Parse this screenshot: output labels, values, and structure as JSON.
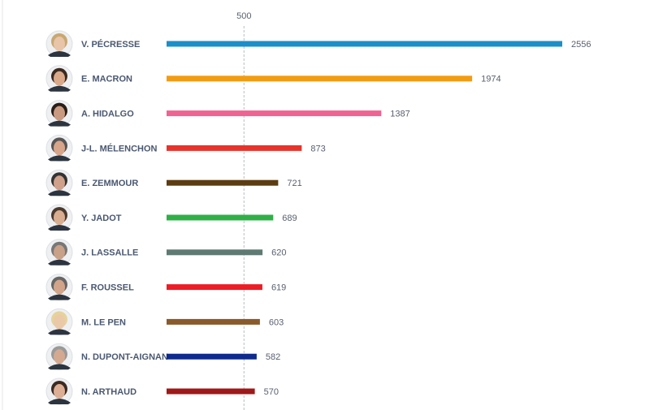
{
  "chart_data": {
    "type": "bar",
    "orientation": "horizontal",
    "categories": [
      "V. PÉCRESSE",
      "E. MACRON",
      "A. HIDALGO",
      "J-L. MÉLENCHON",
      "E. ZEMMOUR",
      "Y. JADOT",
      "J. LASSALLE",
      "F. ROUSSEL",
      "M. LE PEN",
      "N. DUPONT-AIGNAN",
      "N. ARTHAUD"
    ],
    "values": [
      2556,
      1974,
      1387,
      873,
      721,
      689,
      620,
      619,
      603,
      582,
      570
    ],
    "colors": [
      "#1a8fc9",
      "#f39c12",
      "#f06292",
      "#e8332b",
      "#5c3d11",
      "#2eb045",
      "#5f7a72",
      "#ee1c25",
      "#8a5a2b",
      "#0d2a8c",
      "#a01818"
    ],
    "xlim": [
      0,
      2556
    ],
    "xticks": [
      500
    ],
    "grid": true
  }
}
